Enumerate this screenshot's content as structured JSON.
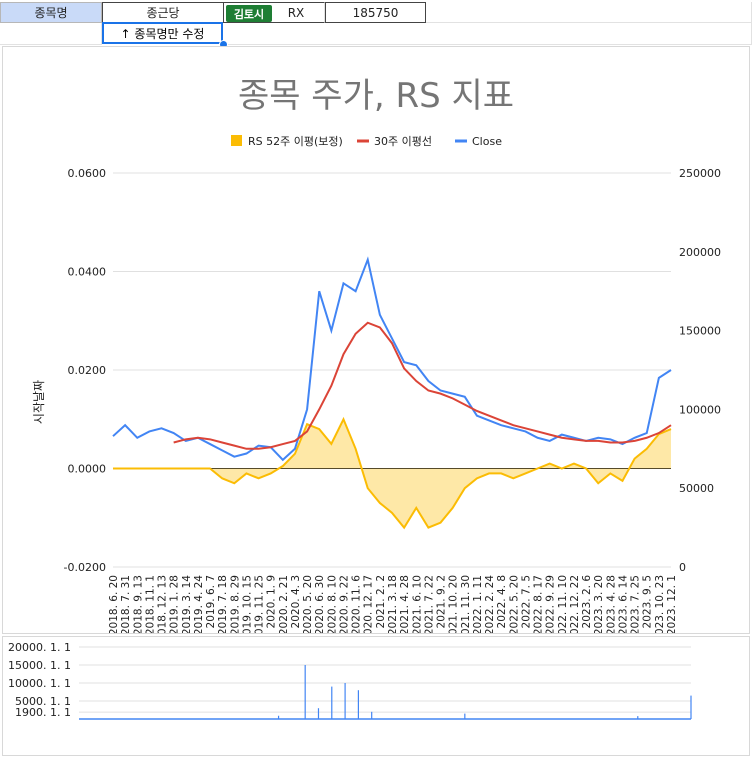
{
  "sheet": {
    "cells": {
      "label": "종목명",
      "stock_name": "종근당",
      "chip": "김토시",
      "ticker_suffix": "RX",
      "code": "185750",
      "hint": "↑ 종목명만 수정"
    }
  },
  "colors": {
    "rs_fill": "#fbbc04",
    "ma_line": "#db4437",
    "close_line": "#4285f4",
    "title": "#757575",
    "grid": "#e0e0e0"
  },
  "chart_data": [
    {
      "type": "line",
      "title": "종목 주가, RS 지표",
      "ylabel": "시작날짜",
      "legend_position": "top",
      "grid": true,
      "legend": [
        "RS 52주 이평(보정)",
        "30주 이평선",
        "Close"
      ],
      "left_axis": {
        "ylim": [
          -0.02,
          0.06
        ],
        "ticks": [
          "0.0600",
          "0.0400",
          "0.0200",
          "0.0000",
          "-0.0200"
        ]
      },
      "right_axis": {
        "ylim": [
          0,
          250000
        ],
        "ticks": [
          "250000",
          "200000",
          "150000",
          "100000",
          "50000",
          "0"
        ]
      },
      "x_ticks": [
        "2018. 6. 20",
        "2018. 7. 31",
        "2018. 9. 13",
        "2018. 11. 1",
        "2018. 12. 13",
        "2019. 1. 28",
        "2019. 3. 14",
        "2019. 4. 24",
        "2019. 6. 7",
        "2019. 7. 18",
        "2019. 8. 29",
        "2019. 10. 15",
        "2019. 11. 25",
        "2020. 1. 9",
        "2020. 2. 21",
        "2020. 4. 3",
        "2020. 5. 20",
        "2020. 6. 30",
        "2020. 8. 10",
        "2020. 9. 22",
        "2020. 11. 6",
        "2020. 12. 17",
        "2021. 2. 2",
        "2021. 3. 18",
        "2021. 4. 28",
        "2021. 6. 10",
        "2021. 7. 22",
        "2021. 9. 2",
        "2021. 10. 20",
        "2021. 11. 30",
        "2022. 1. 11",
        "2022. 2. 24",
        "2022. 4. 8",
        "2022. 5. 20",
        "2022. 7. 5",
        "2022. 8. 17",
        "2022. 9. 29",
        "2022. 11. 10",
        "2022. 12. 22",
        "2023. 2. 6",
        "2023. 3. 20",
        "2023. 4. 28",
        "2023. 6. 14",
        "2023. 7. 25",
        "2023. 9. 5",
        "2023. 10. 23",
        "2023. 12. 1"
      ],
      "series": [
        {
          "name": "Close",
          "axis": "right",
          "x": [
            0,
            1,
            2,
            3,
            4,
            5,
            6,
            7,
            8,
            9,
            10,
            11,
            12,
            13,
            14,
            15,
            16,
            17,
            18,
            19,
            20,
            21,
            22,
            23,
            24,
            25,
            26,
            27,
            28,
            29,
            30,
            31,
            32,
            33,
            34,
            35,
            36,
            37,
            38,
            39,
            40,
            41,
            42,
            43,
            44,
            45,
            46
          ],
          "values": [
            83000,
            90000,
            82000,
            86000,
            88000,
            85000,
            80000,
            82000,
            78000,
            74000,
            70000,
            72000,
            77000,
            76000,
            68000,
            75000,
            100000,
            175000,
            150000,
            180000,
            175000,
            195000,
            160000,
            145000,
            130000,
            128000,
            118000,
            112000,
            110000,
            108000,
            96000,
            93000,
            90000,
            88000,
            86000,
            82000,
            80000,
            84000,
            82000,
            80000,
            82000,
            81000,
            78000,
            82000,
            85000,
            120000,
            125000
          ]
        },
        {
          "name": "30주 이평선",
          "axis": "right",
          "x": [
            5,
            6,
            7,
            8,
            9,
            10,
            11,
            12,
            13,
            14,
            15,
            16,
            17,
            18,
            19,
            20,
            21,
            22,
            23,
            24,
            25,
            26,
            27,
            28,
            29,
            30,
            31,
            32,
            33,
            34,
            35,
            36,
            37,
            38,
            39,
            40,
            41,
            42,
            43,
            44,
            45,
            46
          ],
          "values": [
            79000,
            81000,
            82000,
            81000,
            79000,
            77000,
            75000,
            75000,
            76000,
            78000,
            80000,
            86000,
            100000,
            115000,
            135000,
            148000,
            155000,
            152000,
            142000,
            126000,
            118000,
            112000,
            110000,
            107000,
            103000,
            99000,
            96000,
            93000,
            90000,
            88000,
            86000,
            84000,
            82000,
            81000,
            80000,
            80000,
            79000,
            79000,
            80000,
            82000,
            85000,
            90000
          ]
        },
        {
          "name": "RS 52주 이평(보정)",
          "axis": "left",
          "x": [
            0,
            1,
            2,
            3,
            4,
            5,
            6,
            7,
            8,
            9,
            10,
            11,
            12,
            13,
            14,
            15,
            16,
            17,
            18,
            19,
            20,
            21,
            22,
            23,
            24,
            25,
            26,
            27,
            28,
            29,
            30,
            31,
            32,
            33,
            34,
            35,
            36,
            37,
            38,
            39,
            40,
            41,
            42,
            43,
            44,
            45,
            46
          ],
          "values": [
            0,
            0,
            0,
            0,
            0,
            0,
            0,
            0,
            0,
            -0.002,
            -0.003,
            -0.001,
            -0.002,
            -0.001,
            0.0005,
            0.003,
            0.009,
            0.008,
            0.005,
            0.01,
            0.004,
            -0.004,
            -0.007,
            -0.009,
            -0.012,
            -0.008,
            -0.012,
            -0.011,
            -0.008,
            -0.004,
            -0.002,
            -0.001,
            -0.001,
            -0.002,
            -0.001,
            0.0,
            0.001,
            0.0,
            0.001,
            0.0,
            -0.003,
            -0.001,
            -0.0025,
            0.002,
            0.004,
            0.007,
            0.008
          ]
        }
      ]
    },
    {
      "type": "bar",
      "title": "",
      "y_ticks": [
        "20000. 1. 1",
        "15000. 1. 1",
        "10000. 1. 1",
        "5000. 1. 1",
        "1900. 1. 1"
      ],
      "ylim": [
        0,
        20000
      ],
      "grid": true,
      "spikes_x_index": [
        15,
        17,
        18,
        19,
        20,
        21,
        22,
        29,
        42,
        46
      ],
      "spikes_values": [
        900,
        15000,
        3000,
        9000,
        10000,
        8000,
        2000,
        1500,
        800,
        6500
      ]
    }
  ]
}
